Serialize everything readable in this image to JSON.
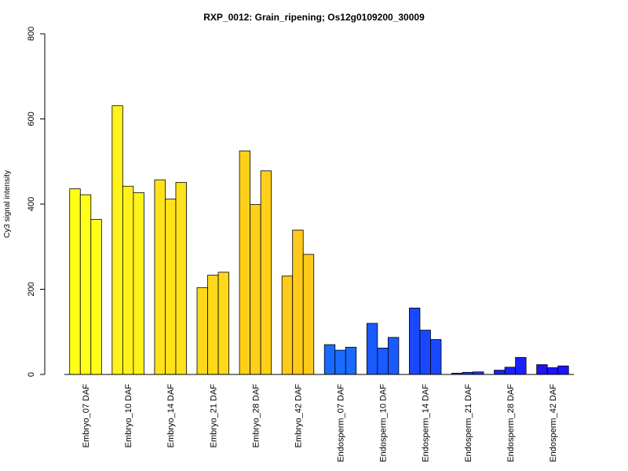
{
  "chart_data": {
    "type": "bar",
    "title": "RXP_0012: Grain_ripening; Os12g0109200_30009",
    "xlabel": "",
    "ylabel": "Cy3 signal intensity",
    "ylim": [
      0,
      800
    ],
    "yticks": [
      0,
      200,
      400,
      600,
      800
    ],
    "grid": false,
    "bars_per_group": 3,
    "categories": [
      "Embryo_07 DAF",
      "Embryo_10 DAF",
      "Embryo_14 DAF",
      "Embryo_21 DAF",
      "Embryo_28 DAF",
      "Embryo_42 DAF",
      "Endosperm_07 DAF",
      "Endosperm_10 DAF",
      "Endosperm_14 DAF",
      "Endosperm_21 DAF",
      "Endosperm_28 DAF",
      "Endosperm_42 DAF"
    ],
    "group_colors": [
      "#FFFF1A",
      "#FFF21A",
      "#FFE21A",
      "#FFD81A",
      "#FFD01A",
      "#FFCA1A",
      "#1A6AFF",
      "#1A5AFF",
      "#1A48FF",
      "#1A34FF",
      "#1A20FF",
      "#1A14FF"
    ],
    "values": [
      [
        436,
        422,
        364
      ],
      [
        631,
        442,
        427
      ],
      [
        457,
        412,
        451
      ],
      [
        204,
        233,
        240
      ],
      [
        525,
        399,
        478
      ],
      [
        231,
        339,
        282
      ],
      [
        70,
        57,
        64
      ],
      [
        120,
        62,
        87
      ],
      [
        156,
        104,
        82
      ],
      [
        3,
        5,
        6
      ],
      [
        10,
        17,
        40
      ],
      [
        23,
        16,
        20
      ]
    ]
  }
}
